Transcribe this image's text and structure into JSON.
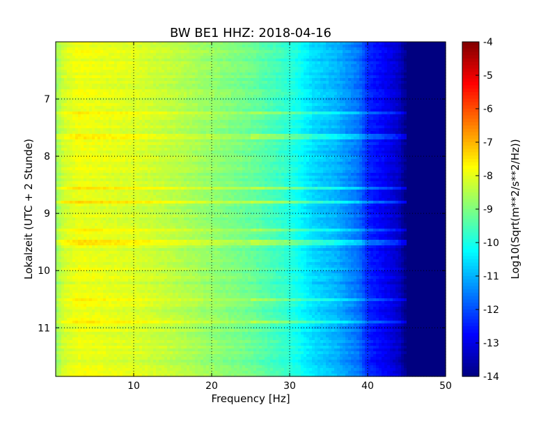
{
  "chart_data": {
    "type": "heatmap",
    "title": "BW BE1 HHZ: 2018-04-16",
    "xlabel": "Frequency [Hz]",
    "ylabel": "Lokalzeit (UTC + 2 Stunde)",
    "xlim": [
      0,
      50
    ],
    "ylim": [
      11.85,
      6.0
    ],
    "x_ticks": [
      "10",
      "20",
      "30",
      "40",
      "50"
    ],
    "y_ticks": [
      "7",
      "8",
      "9",
      "10",
      "11"
    ],
    "grid": true,
    "colormap": "jet",
    "colorbar": {
      "label": "Log10(Sqrt(m**2/s**2/Hz))",
      "range": [
        -14,
        -4
      ],
      "ticks": [
        "-4",
        "-5",
        "-6",
        "-7",
        "-8",
        "-9",
        "-10",
        "-11",
        "-12",
        "-13",
        "-14"
      ]
    },
    "spectral_profile": {
      "frequency_hz": [
        0,
        1,
        3,
        6,
        10,
        15,
        20,
        25,
        29,
        31,
        33,
        36,
        39,
        40,
        42,
        44,
        45,
        50
      ],
      "log10_amplitude": [
        -8.8,
        -8.2,
        -7.9,
        -8.0,
        -8.1,
        -8.4,
        -8.8,
        -9.2,
        -9.7,
        -10.1,
        -10.6,
        -11.0,
        -11.7,
        -12.4,
        -12.8,
        -13.3,
        -14.0,
        -14.0
      ]
    },
    "bright_bands_hour": [
      7.25,
      7.65,
      8.55,
      8.8,
      9.28,
      9.5,
      10.5,
      10.9
    ]
  }
}
